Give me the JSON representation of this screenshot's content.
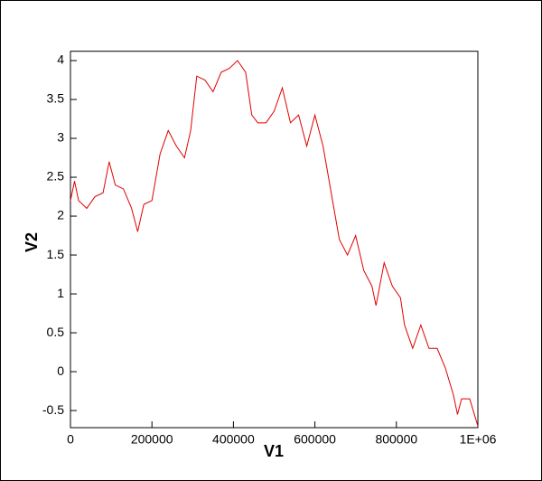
{
  "chart_data": {
    "type": "line",
    "x_label": "V1",
    "y_label": "V2",
    "xlim": [
      0,
      1000000
    ],
    "xticks": [
      0,
      200000,
      400000,
      600000,
      800000,
      {
        "value": 1000000,
        "label": "1E+06"
      }
    ],
    "ylim": [
      -0.72,
      4.12
    ],
    "yticks": [
      -0.5,
      0,
      0.5,
      1,
      1.5,
      2,
      2.5,
      3,
      3.5,
      4
    ],
    "series": [
      {
        "color": "#e00000",
        "x": [
          0,
          10000,
          20000,
          40000,
          60000,
          80000,
          95000,
          110000,
          130000,
          150000,
          165000,
          180000,
          200000,
          220000,
          240000,
          260000,
          280000,
          295000,
          310000,
          330000,
          350000,
          370000,
          390000,
          410000,
          430000,
          445000,
          460000,
          480000,
          500000,
          520000,
          540000,
          560000,
          580000,
          600000,
          620000,
          640000,
          660000,
          680000,
          700000,
          720000,
          740000,
          750000,
          770000,
          790000,
          810000,
          820000,
          840000,
          860000,
          880000,
          900000,
          920000,
          940000,
          950000,
          960000,
          980000,
          1000000
        ],
        "values": [
          2.2,
          2.45,
          2.2,
          2.1,
          2.25,
          2.3,
          2.7,
          2.4,
          2.35,
          2.1,
          1.8,
          2.15,
          2.2,
          2.8,
          3.1,
          2.9,
          2.75,
          3.1,
          3.8,
          3.75,
          3.6,
          3.85,
          3.9,
          4.0,
          3.85,
          3.3,
          3.2,
          3.2,
          3.35,
          3.65,
          3.2,
          3.3,
          2.9,
          3.3,
          2.9,
          2.3,
          1.7,
          1.5,
          1.75,
          1.3,
          1.1,
          0.85,
          1.4,
          1.1,
          0.95,
          0.6,
          0.3,
          0.6,
          0.3,
          0.3,
          0.05,
          -0.3,
          -0.55,
          -0.35,
          -0.35,
          -0.7
        ]
      }
    ]
  }
}
